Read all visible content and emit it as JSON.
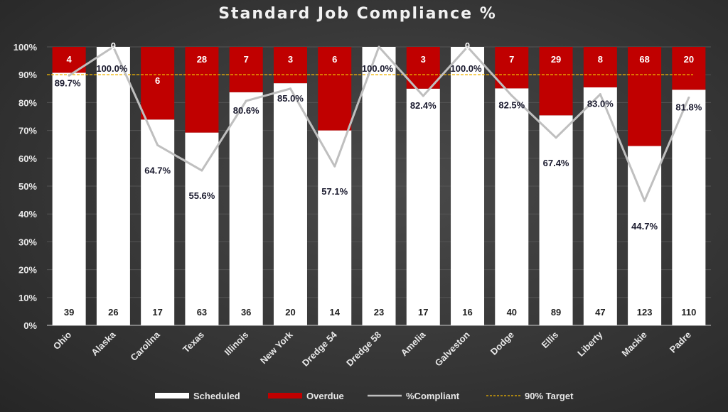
{
  "chart_data": {
    "type": "bar",
    "subtype": "stacked-100-percent-with-line",
    "title": "Standard Job Compliance %",
    "xlabel": "",
    "ylabel": "",
    "ylim": [
      0,
      1
    ],
    "yticks": [
      "0%",
      "10%",
      "20%",
      "30%",
      "40%",
      "50%",
      "60%",
      "70%",
      "80%",
      "90%",
      "100%"
    ],
    "grid": true,
    "legend_position": "bottom",
    "categories": [
      "Ohio",
      "Alaska",
      "Carolina",
      "Texas",
      "Illinois",
      "New York",
      "Dredge 54",
      "Dredge 58",
      "Amelia",
      "Galveston",
      "Dodge",
      "Ellis",
      "Liberty",
      "Mackie",
      "Padre"
    ],
    "series": [
      {
        "name": "Scheduled",
        "type": "bar",
        "color": "#ffffff",
        "values": [
          39,
          26,
          17,
          63,
          36,
          20,
          14,
          23,
          17,
          16,
          40,
          89,
          47,
          123,
          110
        ]
      },
      {
        "name": "Overdue",
        "type": "bar",
        "color": "#c00000",
        "values": [
          4,
          0,
          6,
          28,
          7,
          3,
          6,
          0,
          3,
          0,
          7,
          29,
          8,
          68,
          20
        ]
      },
      {
        "name": "%Compliant",
        "type": "line",
        "color": "#bfbfbf",
        "values": [
          89.7,
          100.0,
          64.7,
          55.6,
          80.6,
          85.0,
          57.1,
          100.0,
          82.4,
          100.0,
          82.5,
          67.4,
          83.0,
          44.7,
          81.8
        ],
        "labels": [
          "89.7%",
          "100.0%",
          "64.7%",
          "55.6%",
          "80.6%",
          "85.0%",
          "57.1%",
          "100.0%",
          "82.4%",
          "100.0%",
          "82.5%",
          "67.4%",
          "83.0%",
          "44.7%",
          "81.8%"
        ]
      },
      {
        "name": "90% Target",
        "type": "line",
        "style": "dashed",
        "color": "#f0b400",
        "value": 90
      }
    ],
    "overdue_visible_labels": [
      "4",
      "0",
      "6",
      "28",
      "7",
      "3",
      "6",
      "",
      "3",
      "0",
      "7",
      "29",
      "8",
      "68",
      "20"
    ]
  },
  "legend": [
    {
      "label": "Scheduled",
      "kind": "box",
      "color": "#ffffff"
    },
    {
      "label": "Overdue",
      "kind": "box",
      "color": "#c00000"
    },
    {
      "label": "%Compliant",
      "kind": "line",
      "color": "#bfbfbf"
    },
    {
      "label": "90% Target",
      "kind": "dash",
      "color": "#f0b400"
    }
  ]
}
